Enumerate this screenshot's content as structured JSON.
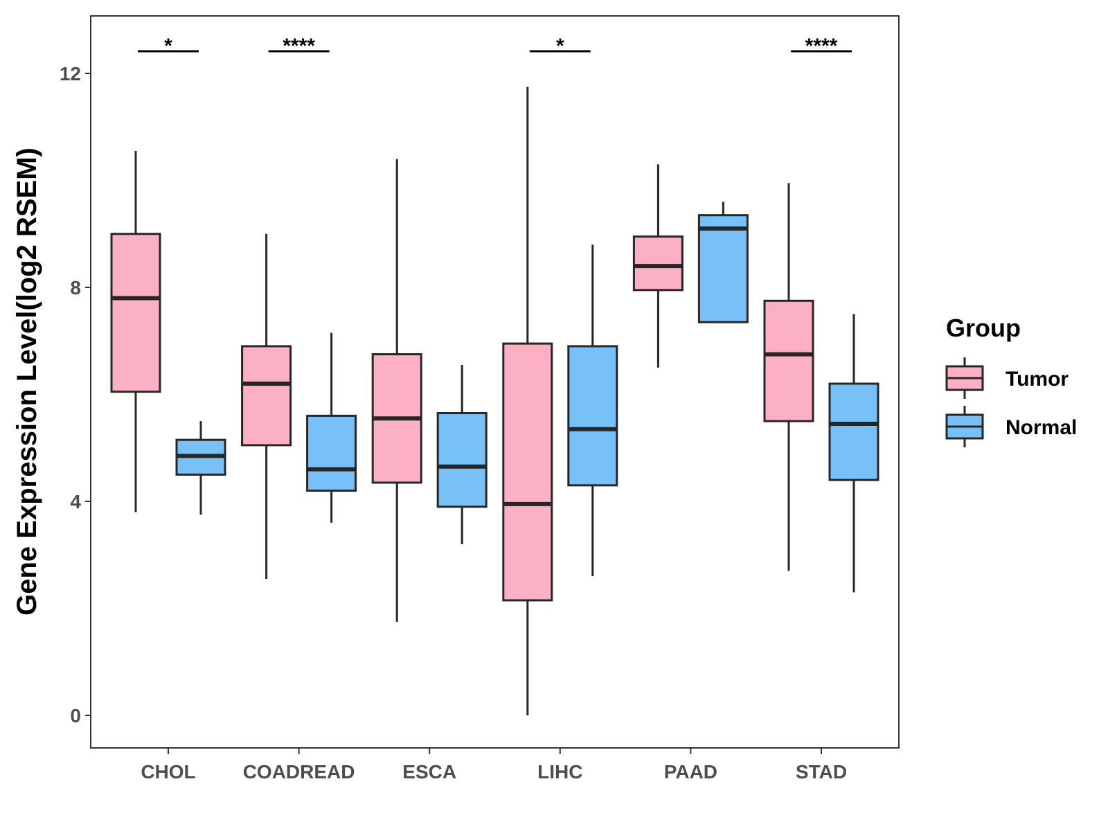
{
  "chart_data": {
    "type": "boxplot",
    "title": "",
    "xlabel": "",
    "ylabel": "Gene Expression Level(log2 RSEM)",
    "ylim": [
      -0.6,
      13.1
    ],
    "yticks": [
      0,
      4,
      8,
      12
    ],
    "grid": false,
    "legend": {
      "title": "Group",
      "placement": "right",
      "entries": [
        {
          "name": "Tumor",
          "color": "#FBB1C3"
        },
        {
          "name": "Normal",
          "color": "#77C1F8"
        }
      ]
    },
    "categories": [
      "CHOL",
      "COADREAD",
      "ESCA",
      "LIHC",
      "PAAD",
      "STAD"
    ],
    "series": [
      {
        "name": "Tumor",
        "color": "#FBB1C3",
        "boxes": [
          {
            "category": "CHOL",
            "min": 3.8,
            "q1": 6.05,
            "median": 7.8,
            "q3": 9.0,
            "max": 10.55
          },
          {
            "category": "COADREAD",
            "min": 2.55,
            "q1": 5.05,
            "median": 6.2,
            "q3": 6.9,
            "max": 9.0
          },
          {
            "category": "ESCA",
            "min": 1.75,
            "q1": 4.35,
            "median": 5.55,
            "q3": 6.75,
            "max": 10.4
          },
          {
            "category": "LIHC",
            "min": 0.0,
            "q1": 2.15,
            "median": 3.95,
            "q3": 6.95,
            "max": 11.75
          },
          {
            "category": "PAAD",
            "min": 6.5,
            "q1": 7.95,
            "median": 8.4,
            "q3": 8.95,
            "max": 10.3
          },
          {
            "category": "STAD",
            "min": 2.7,
            "q1": 5.5,
            "median": 6.75,
            "q3": 7.75,
            "max": 9.95
          }
        ]
      },
      {
        "name": "Normal",
        "color": "#77C1F8",
        "boxes": [
          {
            "category": "CHOL",
            "min": 3.75,
            "q1": 4.5,
            "median": 4.85,
            "q3": 5.15,
            "max": 5.5
          },
          {
            "category": "COADREAD",
            "min": 3.6,
            "q1": 4.2,
            "median": 4.6,
            "q3": 5.6,
            "max": 7.15
          },
          {
            "category": "ESCA",
            "min": 3.2,
            "q1": 3.9,
            "median": 4.65,
            "q3": 5.65,
            "max": 6.55
          },
          {
            "category": "LIHC",
            "min": 2.6,
            "q1": 4.3,
            "median": 5.35,
            "q3": 6.9,
            "max": 8.8
          },
          {
            "category": "PAAD",
            "min": null,
            "q1": 7.35,
            "median": 9.1,
            "q3": 9.35,
            "max": 9.6
          },
          {
            "category": "STAD",
            "min": 2.3,
            "q1": 4.4,
            "median": 5.45,
            "q3": 6.2,
            "max": 7.5
          }
        ]
      }
    ],
    "significance": [
      {
        "category": "CHOL",
        "label": "*"
      },
      {
        "category": "COADREAD",
        "label": "****"
      },
      {
        "category": "LIHC",
        "label": "*"
      },
      {
        "category": "STAD",
        "label": "****"
      }
    ]
  }
}
